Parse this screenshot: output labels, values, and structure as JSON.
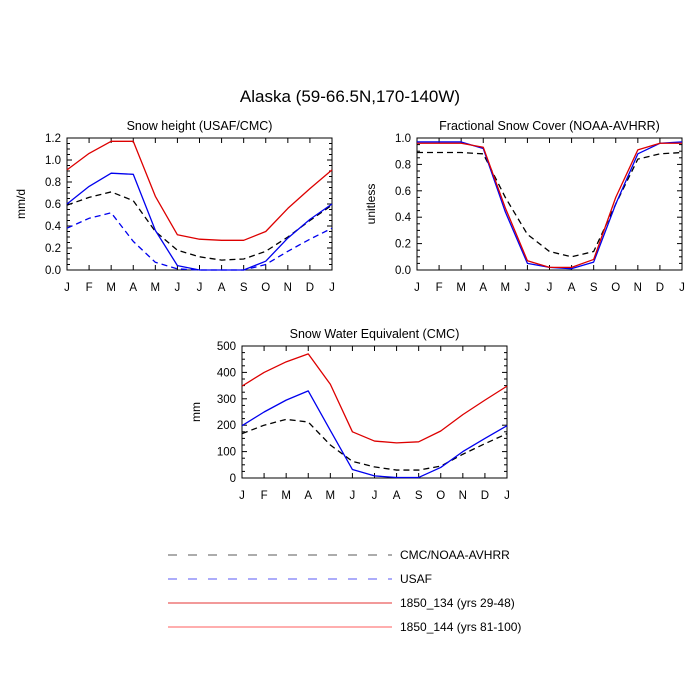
{
  "figure": {
    "title": "Alaska (59-66.5N,170-140W)"
  },
  "legend": [
    {
      "label": "CMC/NOAA-AVHRR",
      "color": "#000000",
      "dash": true
    },
    {
      "label": "USAF",
      "color": "#0000ee",
      "dash": true
    },
    {
      "label": "1850_134 (yrs 29-48)",
      "color": "#dd0000",
      "dash": false
    },
    {
      "label": "1850_144 (yrs 81-100)",
      "color": "#ff3333",
      "dash": false
    }
  ],
  "chart_data": [
    {
      "type": "line",
      "title": "Snow height (USAF/CMC)",
      "ylabel": "mm/d",
      "xlabel": "",
      "categories": [
        "J",
        "F",
        "M",
        "A",
        "M",
        "J",
        "J",
        "A",
        "S",
        "O",
        "N",
        "D",
        "J"
      ],
      "ylim": [
        0,
        1.2
      ],
      "yticks": [
        "0.0",
        "0.2",
        "0.4",
        "0.6",
        "0.8",
        "1.0",
        "1.2"
      ],
      "ytick_values": [
        0,
        0.2,
        0.4,
        0.6,
        0.8,
        1.0,
        1.2
      ],
      "series": [
        {
          "name": "CMC/NOAA-AVHRR",
          "color": "#000000",
          "dash": true,
          "values": [
            0.59,
            0.66,
            0.71,
            0.63,
            0.35,
            0.18,
            0.12,
            0.09,
            0.1,
            0.17,
            0.3,
            0.45,
            0.59
          ]
        },
        {
          "name": "USAF",
          "color": "#0000ee",
          "dash": true,
          "values": [
            0.38,
            0.47,
            0.52,
            0.26,
            0.07,
            0.01,
            0.0,
            0.0,
            0.0,
            0.05,
            0.17,
            0.28,
            0.38
          ]
        },
        {
          "name": "1850_134 (yrs 29-48)",
          "color": "#0000ee",
          "dash": false,
          "values": [
            0.6,
            0.76,
            0.88,
            0.87,
            0.36,
            0.04,
            0.0,
            0.0,
            0.0,
            0.08,
            0.29,
            0.46,
            0.6
          ]
        },
        {
          "name": "1850_144 (yrs 81-100)",
          "color": "#dd0000",
          "dash": false,
          "values": [
            0.91,
            1.06,
            1.17,
            1.17,
            0.67,
            0.32,
            0.28,
            0.27,
            0.27,
            0.35,
            0.56,
            0.74,
            0.91
          ]
        }
      ]
    },
    {
      "type": "line",
      "title": "Fractional Snow Cover (NOAA-AVHRR)",
      "ylabel": "unitless",
      "xlabel": "",
      "categories": [
        "J",
        "F",
        "M",
        "A",
        "M",
        "J",
        "J",
        "A",
        "S",
        "O",
        "N",
        "D",
        "J"
      ],
      "ylim": [
        0,
        1.0
      ],
      "yticks": [
        "0.0",
        "0.2",
        "0.4",
        "0.6",
        "0.8",
        "1.0"
      ],
      "ytick_values": [
        0,
        0.2,
        0.4,
        0.6,
        0.8,
        1.0
      ],
      "series": [
        {
          "name": "CMC/NOAA-AVHRR",
          "color": "#000000",
          "dash": true,
          "values": [
            0.89,
            0.89,
            0.89,
            0.88,
            0.55,
            0.27,
            0.14,
            0.1,
            0.14,
            0.5,
            0.84,
            0.88,
            0.89
          ]
        },
        {
          "name": "1850_134 (yrs 29-48)",
          "color": "#0000ee",
          "dash": false,
          "values": [
            0.97,
            0.97,
            0.97,
            0.92,
            0.44,
            0.05,
            0.02,
            0.01,
            0.06,
            0.5,
            0.88,
            0.96,
            0.97
          ]
        },
        {
          "name": "1850_144 (yrs 81-100)",
          "color": "#dd0000",
          "dash": false,
          "values": [
            0.96,
            0.96,
            0.96,
            0.93,
            0.47,
            0.07,
            0.02,
            0.02,
            0.08,
            0.55,
            0.91,
            0.96,
            0.96
          ]
        }
      ]
    },
    {
      "type": "line",
      "title": "Snow Water Equivalent (CMC)",
      "ylabel": "mm",
      "xlabel": "",
      "categories": [
        "J",
        "F",
        "M",
        "A",
        "M",
        "J",
        "J",
        "A",
        "S",
        "O",
        "N",
        "D",
        "J"
      ],
      "ylim": [
        0,
        500
      ],
      "yticks": [
        "0",
        "100",
        "200",
        "300",
        "400",
        "500"
      ],
      "ytick_values": [
        0,
        100,
        200,
        300,
        400,
        500
      ],
      "series": [
        {
          "name": "CMC/NOAA-AVHRR",
          "color": "#000000",
          "dash": true,
          "values": [
            168,
            200,
            222,
            212,
            125,
            63,
            42,
            30,
            30,
            45,
            90,
            130,
            168
          ]
        },
        {
          "name": "1850_134 (yrs 29-48)",
          "color": "#0000ee",
          "dash": false,
          "values": [
            198,
            250,
            295,
            330,
            180,
            32,
            8,
            2,
            2,
            40,
            100,
            150,
            198
          ]
        },
        {
          "name": "1850_144 (yrs 81-100)",
          "color": "#dd0000",
          "dash": false,
          "values": [
            348,
            400,
            440,
            470,
            355,
            175,
            140,
            133,
            137,
            178,
            240,
            295,
            348
          ]
        }
      ]
    }
  ]
}
